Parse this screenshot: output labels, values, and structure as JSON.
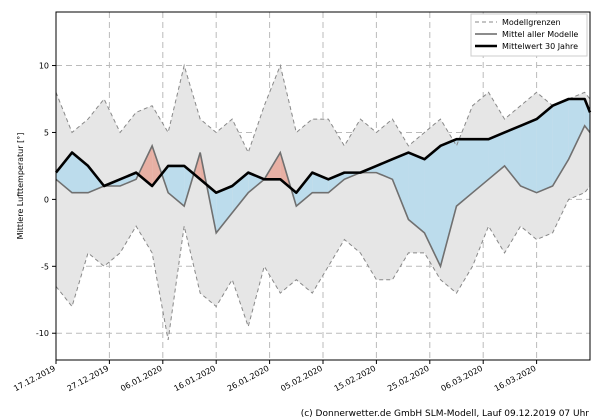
{
  "footer": "(c) Donnerwetter.de GmbH SLM-Modell, Lauf 09.12.2019 07 Uhr",
  "chart_data": {
    "type": "line",
    "ylabel": "Mittlere Lufttemperatur [°]",
    "ylim": [
      -12,
      14
    ],
    "yticks": [
      -10,
      -5,
      0,
      5,
      10
    ],
    "xlim": [
      "2019-12-17",
      "2020-03-26"
    ],
    "xtick_labels": [
      "17.12.2019",
      "27.12.2019",
      "06.01.2020",
      "16.01.2020",
      "26.01.2020",
      "05.02.2020",
      "15.02.2020",
      "25.02.2020",
      "06.03.2020",
      "16.03.2020"
    ],
    "grid": true,
    "legend": {
      "position": "top-right",
      "entries": [
        "Modellgrenzen",
        "Mittel aller Modelle",
        "Mittelwert 30 Jahre"
      ]
    },
    "x": [
      "2019-12-17",
      "2019-12-20",
      "2019-12-23",
      "2019-12-26",
      "2019-12-29",
      "2020-01-01",
      "2020-01-04",
      "2020-01-07",
      "2020-01-10",
      "2020-01-13",
      "2020-01-16",
      "2020-01-19",
      "2020-01-22",
      "2020-01-25",
      "2020-01-28",
      "2020-01-31",
      "2020-02-03",
      "2020-02-06",
      "2020-02-09",
      "2020-02-12",
      "2020-02-15",
      "2020-02-18",
      "2020-02-21",
      "2020-02-24",
      "2020-02-27",
      "2020-03-01",
      "2020-03-04",
      "2020-03-07",
      "2020-03-10",
      "2020-03-13",
      "2020-03-16",
      "2020-03-19",
      "2020-03-22",
      "2020-03-25",
      "2020-03-26"
    ],
    "series": [
      {
        "name": "Modellgrenzen",
        "values": [
          8,
          5,
          6,
          7.5,
          5,
          6.5,
          7,
          5,
          10,
          6,
          5,
          6,
          3.5,
          7,
          10,
          5,
          6,
          6,
          4,
          6,
          5,
          6,
          4,
          5,
          6,
          4,
          7,
          8,
          6,
          7,
          8,
          7,
          7.5,
          8,
          7.5
        ]
      },
      {
        "name": "Modellgrenzen",
        "values": [
          -6.5,
          -8,
          -4,
          -5,
          -4,
          -2,
          -4,
          -10.5,
          -2,
          -7,
          -8,
          -6,
          -9.5,
          -5,
          -7,
          -6,
          -7,
          -5,
          -3,
          -4,
          -6,
          -6,
          -4,
          -4,
          -6,
          -7,
          -5,
          -2,
          -4,
          -2,
          -3,
          -2.5,
          0,
          0.5,
          1
        ]
      },
      {
        "name": "Mittel aller Modelle",
        "values": [
          1.5,
          0.5,
          0.5,
          1,
          1,
          1.5,
          4,
          0.5,
          -0.5,
          3.5,
          -2.5,
          -1,
          0.5,
          1.5,
          3.5,
          -0.5,
          0.5,
          0.5,
          1.5,
          2,
          2,
          1.5,
          -1.5,
          -2.5,
          -5,
          -0.5,
          0.5,
          1.5,
          2.5,
          1,
          0.5,
          1,
          3,
          5.5,
          5
        ]
      },
      {
        "name": "Mittelwert 30 Jahre",
        "values": [
          2,
          3.5,
          2.5,
          1,
          1.5,
          2,
          1,
          2.5,
          2.5,
          1.5,
          0.5,
          1,
          2,
          1.5,
          1.5,
          0.5,
          2,
          1.5,
          2,
          2,
          2.5,
          3,
          3.5,
          3,
          4,
          4.5,
          4.5,
          4.5,
          5,
          5.5,
          6,
          7,
          7.5,
          7.5,
          6.5
        ]
      }
    ]
  }
}
